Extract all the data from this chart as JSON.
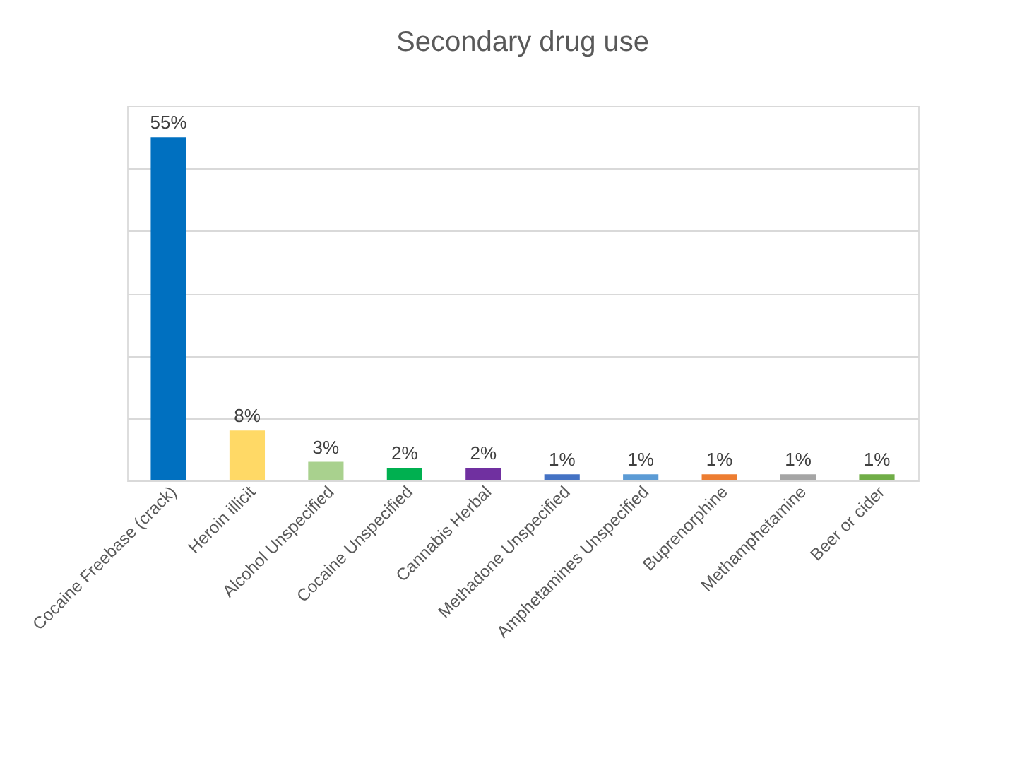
{
  "chart_data": {
    "type": "bar",
    "title": "Secondary drug use",
    "categories": [
      "Cocaine Freebase (crack)",
      "Heroin illicit",
      "Alcohol Unspecified",
      "Cocaine Unspecified",
      "Cannabis Herbal",
      "Methadone Unspecified",
      "Amphetamines Unspecified",
      "Buprenorphine",
      "Methamphetamine",
      "Beer or cider"
    ],
    "values": [
      55,
      8,
      3,
      2,
      2,
      1,
      1,
      1,
      1,
      1
    ],
    "value_labels": [
      "55%",
      "8%",
      "3%",
      "2%",
      "2%",
      "1%",
      "1%",
      "1%",
      "1%",
      "1%"
    ],
    "colors": [
      "#0070c0",
      "#ffd966",
      "#a9d18e",
      "#00b050",
      "#7030a0",
      "#4472c4",
      "#5b9bd5",
      "#ed7d31",
      "#a5a5a5",
      "#70ad47"
    ],
    "ylim": [
      0,
      60
    ],
    "yticks": [
      {
        "value": 0,
        "label": null
      },
      {
        "value": 10,
        "label": null
      },
      {
        "value": 20,
        "label": null
      },
      {
        "value": 30,
        "label": null
      },
      {
        "value": 40,
        "label": null
      },
      {
        "value": 50,
        "label": null
      },
      {
        "value": 60,
        "label": null
      }
    ],
    "grid": "y"
  }
}
